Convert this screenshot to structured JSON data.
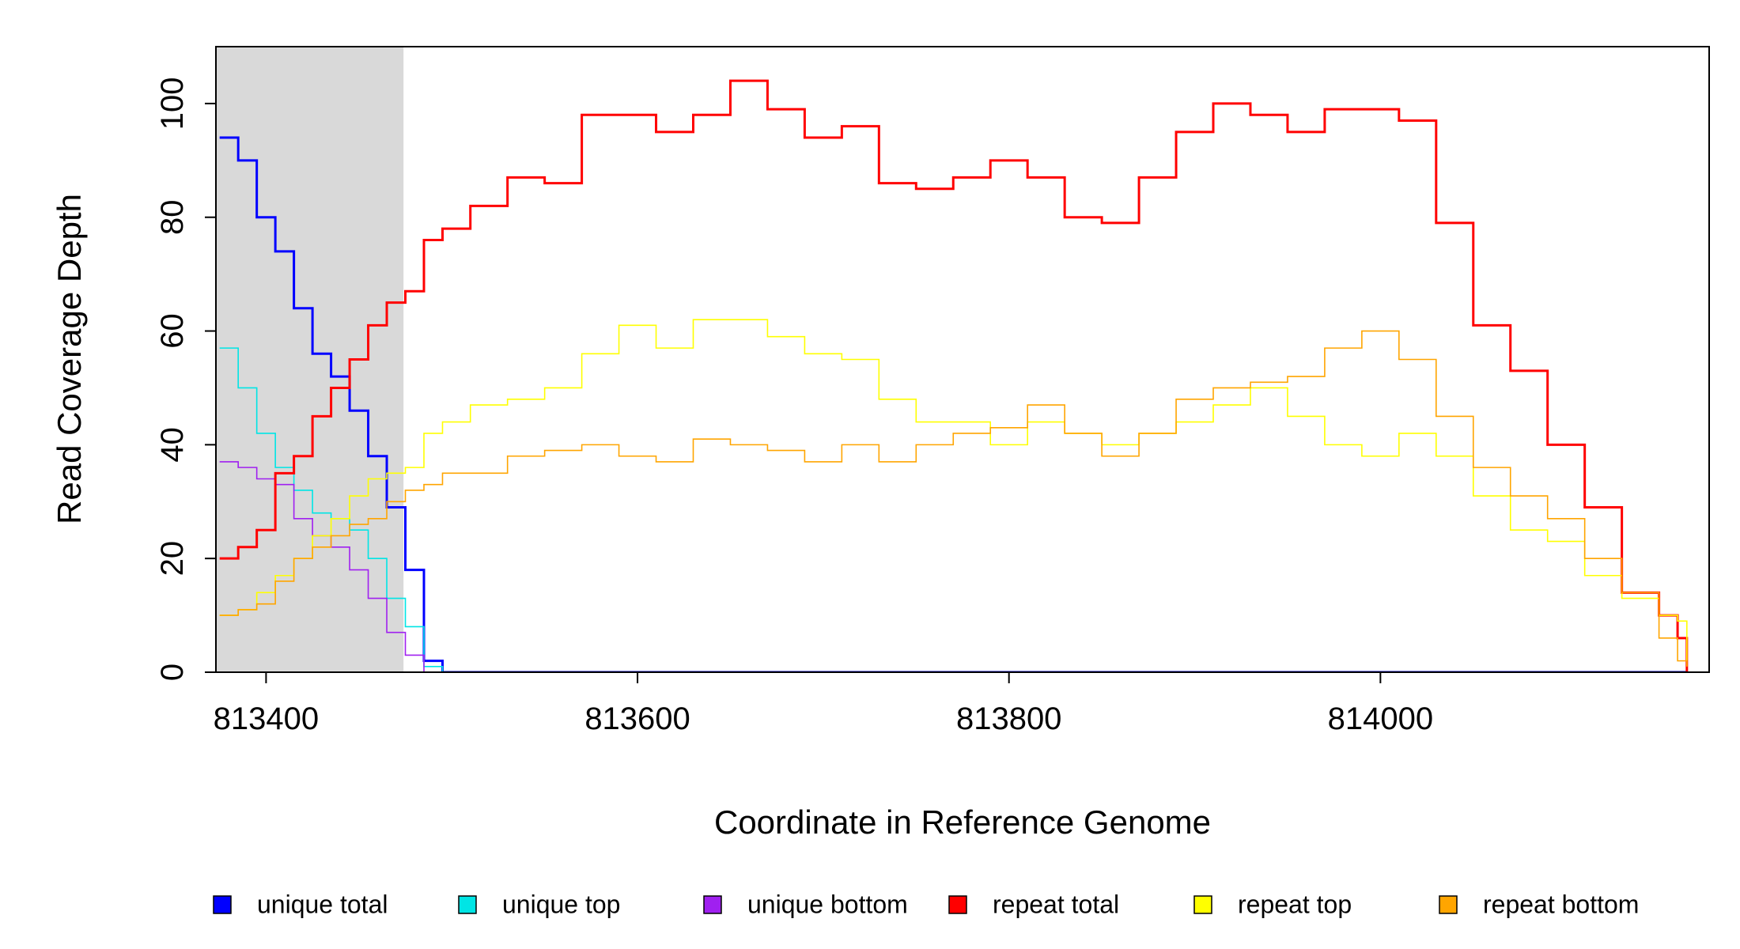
{
  "chart_data": {
    "type": "step-line",
    "x_label": "Coordinate in Reference Genome",
    "y_label": "Read Coverage Depth",
    "xlim": [
      813373,
      814177
    ],
    "ylim": [
      0,
      110
    ],
    "xticks": [
      813400,
      813600,
      813800,
      814000
    ],
    "yticks": [
      0,
      20,
      40,
      60,
      80,
      100
    ],
    "highlight": {
      "xlim": [
        813373,
        813474
      ],
      "color": "#d9d9d9"
    },
    "x": [
      813375,
      813385,
      813395,
      813405,
      813415,
      813425,
      813435,
      813445,
      813455,
      813465,
      813475,
      813485,
      813495,
      813510,
      813530,
      813550,
      813570,
      813590,
      813610,
      813630,
      813650,
      813670,
      813690,
      813710,
      813730,
      813750,
      813770,
      813790,
      813810,
      813830,
      813850,
      813870,
      813890,
      813910,
      813930,
      813950,
      813970,
      813990,
      814010,
      814030,
      814050,
      814070,
      814090,
      814110,
      814130,
      814150,
      814160,
      814165
    ],
    "series": [
      {
        "name": "unique total",
        "color": "#0000ff",
        "width": 3,
        "values": [
          94,
          90,
          80,
          74,
          64,
          56,
          52,
          46,
          38,
          29,
          18,
          2,
          0,
          0,
          0,
          0,
          0,
          0,
          0,
          0,
          0,
          0,
          0,
          0,
          0,
          0,
          0,
          0,
          0,
          0,
          0,
          0,
          0,
          0,
          0,
          0,
          0,
          0,
          0,
          0,
          0,
          0,
          0,
          0,
          0,
          0,
          0,
          0
        ]
      },
      {
        "name": "unique top",
        "color": "#00e5e5",
        "width": 1.6,
        "values": [
          57,
          50,
          42,
          36,
          32,
          28,
          27,
          25,
          20,
          13,
          8,
          1,
          0,
          0,
          0,
          0,
          0,
          0,
          0,
          0,
          0,
          0,
          0,
          0,
          0,
          0,
          0,
          0,
          0,
          0,
          0,
          0,
          0,
          0,
          0,
          0,
          0,
          0,
          0,
          0,
          0,
          0,
          0,
          0,
          0,
          0,
          0,
          0
        ]
      },
      {
        "name": "unique bottom",
        "color": "#a020f0",
        "width": 1.6,
        "values": [
          37,
          36,
          34,
          33,
          27,
          24,
          22,
          18,
          13,
          7,
          3,
          0,
          0,
          0,
          0,
          0,
          0,
          0,
          0,
          0,
          0,
          0,
          0,
          0,
          0,
          0,
          0,
          0,
          0,
          0,
          0,
          0,
          0,
          0,
          0,
          0,
          0,
          0,
          0,
          0,
          0,
          0,
          0,
          0,
          0,
          0,
          0,
          0
        ]
      },
      {
        "name": "repeat total",
        "color": "#ff0000",
        "width": 3,
        "values": [
          20,
          22,
          25,
          35,
          38,
          45,
          50,
          55,
          61,
          65,
          67,
          76,
          78,
          82,
          87,
          86,
          98,
          98,
          95,
          98,
          104,
          99,
          94,
          96,
          86,
          85,
          87,
          90,
          87,
          80,
          79,
          87,
          95,
          100,
          98,
          95,
          99,
          99,
          97,
          79,
          61,
          53,
          40,
          29,
          14,
          10,
          6,
          0
        ]
      },
      {
        "name": "repeat top",
        "color": "#ffff00",
        "width": 1.6,
        "values": [
          10,
          11,
          14,
          17,
          20,
          24,
          27,
          31,
          34,
          35,
          36,
          42,
          44,
          47,
          48,
          50,
          56,
          61,
          57,
          62,
          62,
          59,
          56,
          55,
          48,
          44,
          44,
          40,
          44,
          42,
          40,
          42,
          44,
          47,
          50,
          45,
          40,
          38,
          42,
          38,
          31,
          25,
          23,
          17,
          13,
          10,
          9,
          1
        ]
      },
      {
        "name": "repeat bottom",
        "color": "#ffa500",
        "width": 1.6,
        "values": [
          10,
          11,
          12,
          16,
          20,
          22,
          24,
          26,
          27,
          30,
          32,
          33,
          35,
          35,
          38,
          39,
          40,
          38,
          37,
          41,
          40,
          39,
          37,
          40,
          37,
          40,
          42,
          43,
          47,
          42,
          38,
          42,
          48,
          50,
          51,
          52,
          57,
          60,
          55,
          45,
          36,
          31,
          27,
          20,
          14,
          6,
          2,
          1
        ]
      }
    ]
  }
}
